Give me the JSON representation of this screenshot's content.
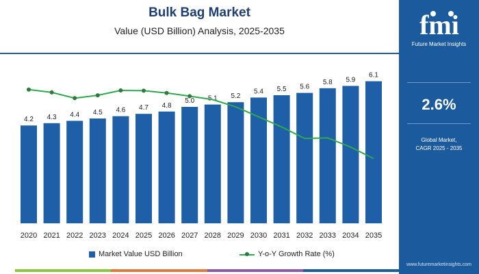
{
  "title": "Bulk Bag Market",
  "subtitle": "Value (USD Billion) Analysis, 2025-2035",
  "chart_data": {
    "type": "bar",
    "categories": [
      "2020",
      "2021",
      "2022",
      "2023",
      "2024",
      "2025",
      "2026",
      "2027",
      "2028",
      "2029",
      "2030",
      "2031",
      "2032",
      "2033",
      "2034",
      "2035"
    ],
    "series": [
      {
        "name": "Market Value USD Billion",
        "type": "bar",
        "values": [
          4.2,
          4.3,
          4.4,
          4.5,
          4.6,
          4.7,
          4.8,
          5.0,
          5.1,
          5.2,
          5.4,
          5.5,
          5.6,
          5.8,
          5.9,
          6.1
        ]
      },
      {
        "name": "Y-o-Y Growth Rate (%)",
        "type": "line",
        "values": [
          2.75,
          2.65,
          2.45,
          2.55,
          2.72,
          2.71,
          2.63,
          2.52,
          2.4,
          2.15,
          1.8,
          1.45,
          1.05,
          1.07,
          0.75,
          0.35
        ]
      }
    ],
    "data_labels": [
      "4.2",
      "4.3",
      "4.4",
      "4.5",
      "4.6",
      "4.7",
      "4.8",
      "5.0",
      "5.1",
      "5.2",
      "5.4",
      "5.5",
      "5.6",
      "5.8",
      "5.9",
      "6.1"
    ],
    "ylim": [
      0,
      7
    ],
    "y2lim": [
      -1.9,
      3.6
    ],
    "grid": false,
    "legend_position": "bottom"
  },
  "legend": {
    "bar_label": "Market Value USD Billion",
    "line_label": "Y-o-Y Growth Rate (%)"
  },
  "colors": {
    "bar": "#1f5fa8",
    "line": "#2fa84f",
    "marker": "#2f7a3f",
    "sidebar": "#1b5a9c",
    "stripe": [
      "#8dc63f",
      "#e07a3a",
      "#8e5aa8",
      "#1b5a9c"
    ]
  },
  "sidebar": {
    "logo_text": "Future Market Insights",
    "cagr_value": "2.6%",
    "cagr_desc_line1": "Global Market,",
    "cagr_desc_line2": "CAGR 2025 - 2035",
    "website": "www.futuremarketinsights.com"
  }
}
